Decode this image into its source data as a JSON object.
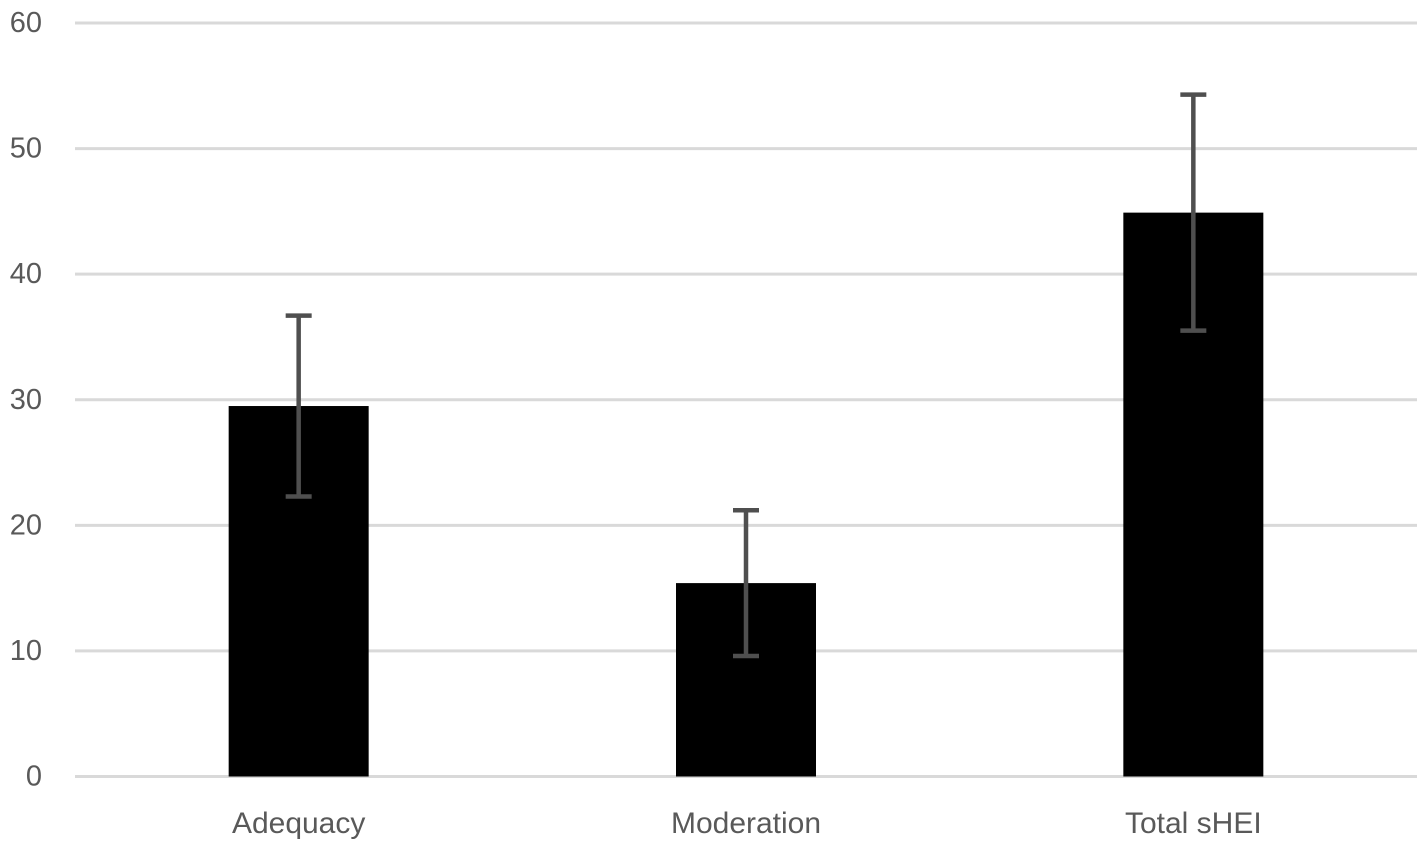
{
  "chart_data": {
    "type": "bar",
    "title": "",
    "xlabel": "",
    "ylabel": "",
    "categories": [
      "Adequacy",
      "Moderation",
      "Total sHEI"
    ],
    "values": [
      29.5,
      15.4,
      44.9
    ],
    "error_bars": {
      "symmetric": true,
      "plus": [
        7.2,
        5.8,
        9.4
      ],
      "minus": [
        7.2,
        5.8,
        9.4
      ]
    },
    "ylim": [
      0,
      60
    ],
    "yticks": [
      0,
      10,
      20,
      30,
      40,
      50,
      60
    ],
    "grid": {
      "horizontal": true,
      "vertical": false
    },
    "legend": {
      "visible": false
    },
    "colors": {
      "bar": "#000000",
      "error_bar": "#4f4f4f",
      "gridline": "#d9d9d9",
      "axis_line": "#d9d9d9",
      "tick_label": "#595959",
      "category_label": "#595959",
      "background": "#ffffff"
    }
  }
}
